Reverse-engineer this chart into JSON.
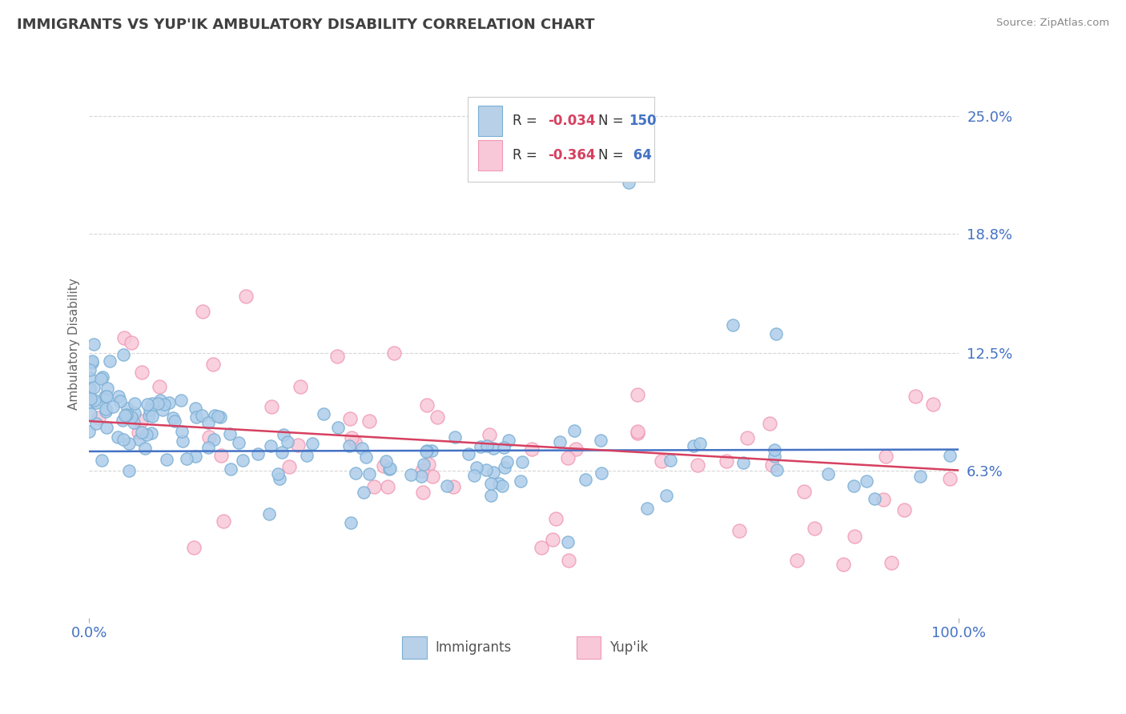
{
  "title": "IMMIGRANTS VS YUP'IK AMBULATORY DISABILITY CORRELATION CHART",
  "source": "Source: ZipAtlas.com",
  "ylabel": "Ambulatory Disability",
  "xlim": [
    0,
    1.0
  ],
  "ylim": [
    -0.015,
    0.275
  ],
  "yticks": [
    0.063,
    0.125,
    0.188,
    0.25
  ],
  "ytick_labels": [
    "6.3%",
    "12.5%",
    "18.8%",
    "25.0%"
  ],
  "xtick_labels": [
    "0.0%",
    "100.0%"
  ],
  "immigrants_color": "#7bafd4",
  "immigrants_fill": "#aecdea",
  "yupik_color": "#f09ab5",
  "yupik_fill": "#f8c8d8",
  "immigrants_N": 150,
  "yupik_N": 64,
  "immigrants_R": -0.034,
  "yupik_R": -0.364,
  "background_color": "#ffffff",
  "grid_color": "#cccccc",
  "title_color": "#404040",
  "axis_label_color": "#666666",
  "tick_label_color": "#4472c4",
  "trend_immigrants_color": "#4472c4",
  "trend_yupik_color": "#d64060",
  "legend_blue_face": "#b8d0e8",
  "legend_pink_face": "#f8c8d8",
  "legend_border": "#cccccc"
}
